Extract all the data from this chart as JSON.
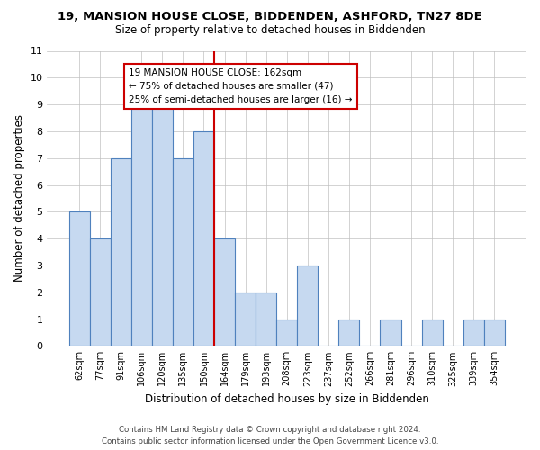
{
  "title": "19, MANSION HOUSE CLOSE, BIDDENDEN, ASHFORD, TN27 8DE",
  "subtitle": "Size of property relative to detached houses in Biddenden",
  "xlabel": "Distribution of detached houses by size in Biddenden",
  "ylabel": "Number of detached properties",
  "bin_labels": [
    "62sqm",
    "77sqm",
    "91sqm",
    "106sqm",
    "120sqm",
    "135sqm",
    "150sqm",
    "164sqm",
    "179sqm",
    "193sqm",
    "208sqm",
    "223sqm",
    "237sqm",
    "252sqm",
    "266sqm",
    "281sqm",
    "296sqm",
    "310sqm",
    "325sqm",
    "339sqm",
    "354sqm"
  ],
  "bar_heights": [
    5,
    4,
    7,
    9,
    9,
    7,
    8,
    4,
    2,
    2,
    1,
    3,
    0,
    1,
    0,
    1,
    0,
    1,
    0,
    1,
    1
  ],
  "bar_color": "#c6d9f0",
  "bar_edge_color": "#4f81bd",
  "vline_x_index": 7,
  "vline_color": "#cc0000",
  "ylim": [
    0,
    11
  ],
  "yticks": [
    0,
    1,
    2,
    3,
    4,
    5,
    6,
    7,
    8,
    9,
    10,
    11
  ],
  "annotation_title": "19 MANSION HOUSE CLOSE: 162sqm",
  "annotation_line1": "← 75% of detached houses are smaller (47)",
  "annotation_line2": "25% of semi-detached houses are larger (16) →",
  "annotation_box_color": "#ffffff",
  "annotation_box_edge": "#cc0000",
  "footer1": "Contains HM Land Registry data © Crown copyright and database right 2024.",
  "footer2": "Contains public sector information licensed under the Open Government Licence v3.0."
}
